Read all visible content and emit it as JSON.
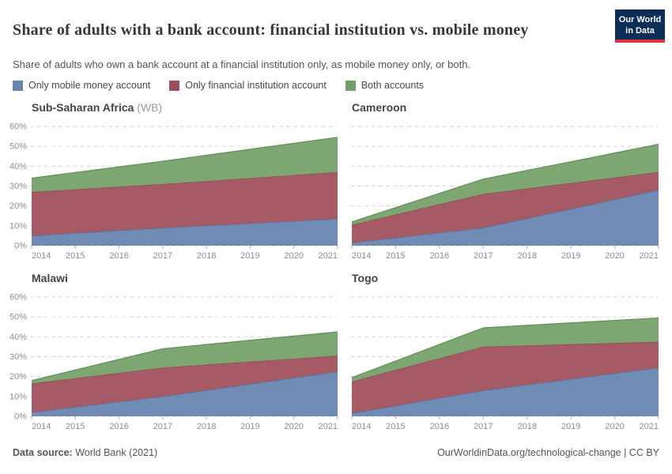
{
  "header": {
    "title": "Share of adults with a bank account: financial institution vs. mobile money",
    "subtitle": "Share of adults who own a bank account at a financial institution only, as mobile money only, or both.",
    "logo_line1": "Our World",
    "logo_line2": "in Data",
    "logo_bg": "#0d2d59",
    "logo_bar": "#d8353c"
  },
  "footer": {
    "source_label": "Data source:",
    "source_value": " World Bank (2021)",
    "right": "OurWorldinData.org/technological-change | CC BY"
  },
  "chart_data": {
    "type": "area",
    "stacked": true,
    "grid": "dashed horizontal every 10%",
    "legend_position": "top",
    "x_data_years": [
      2014,
      2017,
      2021
    ],
    "x_tick_labels": [
      "2014",
      "2015",
      "2016",
      "2017",
      "2018",
      "2019",
      "2020",
      "2021"
    ],
    "y_tick_labels": [
      "0%",
      "10%",
      "20%",
      "30%",
      "40%",
      "50%",
      "60%"
    ],
    "ylim": [
      0,
      60
    ],
    "y_axis_on_left_column_only": true,
    "series": [
      {
        "key": "only_mobile",
        "label": "Only mobile money account",
        "color": "#6782ab",
        "fill": "#708bb4",
        "stroke": "#4d70a2"
      },
      {
        "key": "only_fi",
        "label": "Only financial institution account",
        "color": "#a14d59",
        "fill": "#a65a66",
        "stroke": "#8f434f"
      },
      {
        "key": "both",
        "label": "Both accounts",
        "color": "#71a067",
        "fill": "#7da673",
        "stroke": "#5f9054"
      }
    ],
    "facets": [
      {
        "title": "Sub-Saharan Africa",
        "qualifier": " (WB)",
        "values": {
          "only_mobile": [
            5,
            9,
            13.5
          ],
          "only_fi": [
            22,
            22,
            23.5
          ],
          "both": [
            7,
            11.5,
            17.5
          ]
        }
      },
      {
        "title": "Cameroon",
        "qualifier": "",
        "values": {
          "only_mobile": [
            1.5,
            9,
            28
          ],
          "only_fi": [
            9,
            17,
            9
          ],
          "both": [
            1.5,
            7.5,
            14
          ]
        }
      },
      {
        "title": "Malawi",
        "qualifier": "",
        "values": {
          "only_mobile": [
            2,
            10,
            22.5
          ],
          "only_fi": [
            14.5,
            14.5,
            8
          ],
          "both": [
            1.5,
            9.5,
            12
          ]
        }
      },
      {
        "title": "Togo",
        "qualifier": "",
        "values": {
          "only_mobile": [
            1.5,
            13,
            24.5
          ],
          "only_fi": [
            16,
            22,
            13
          ],
          "both": [
            2,
            9.5,
            12
          ]
        }
      }
    ]
  }
}
